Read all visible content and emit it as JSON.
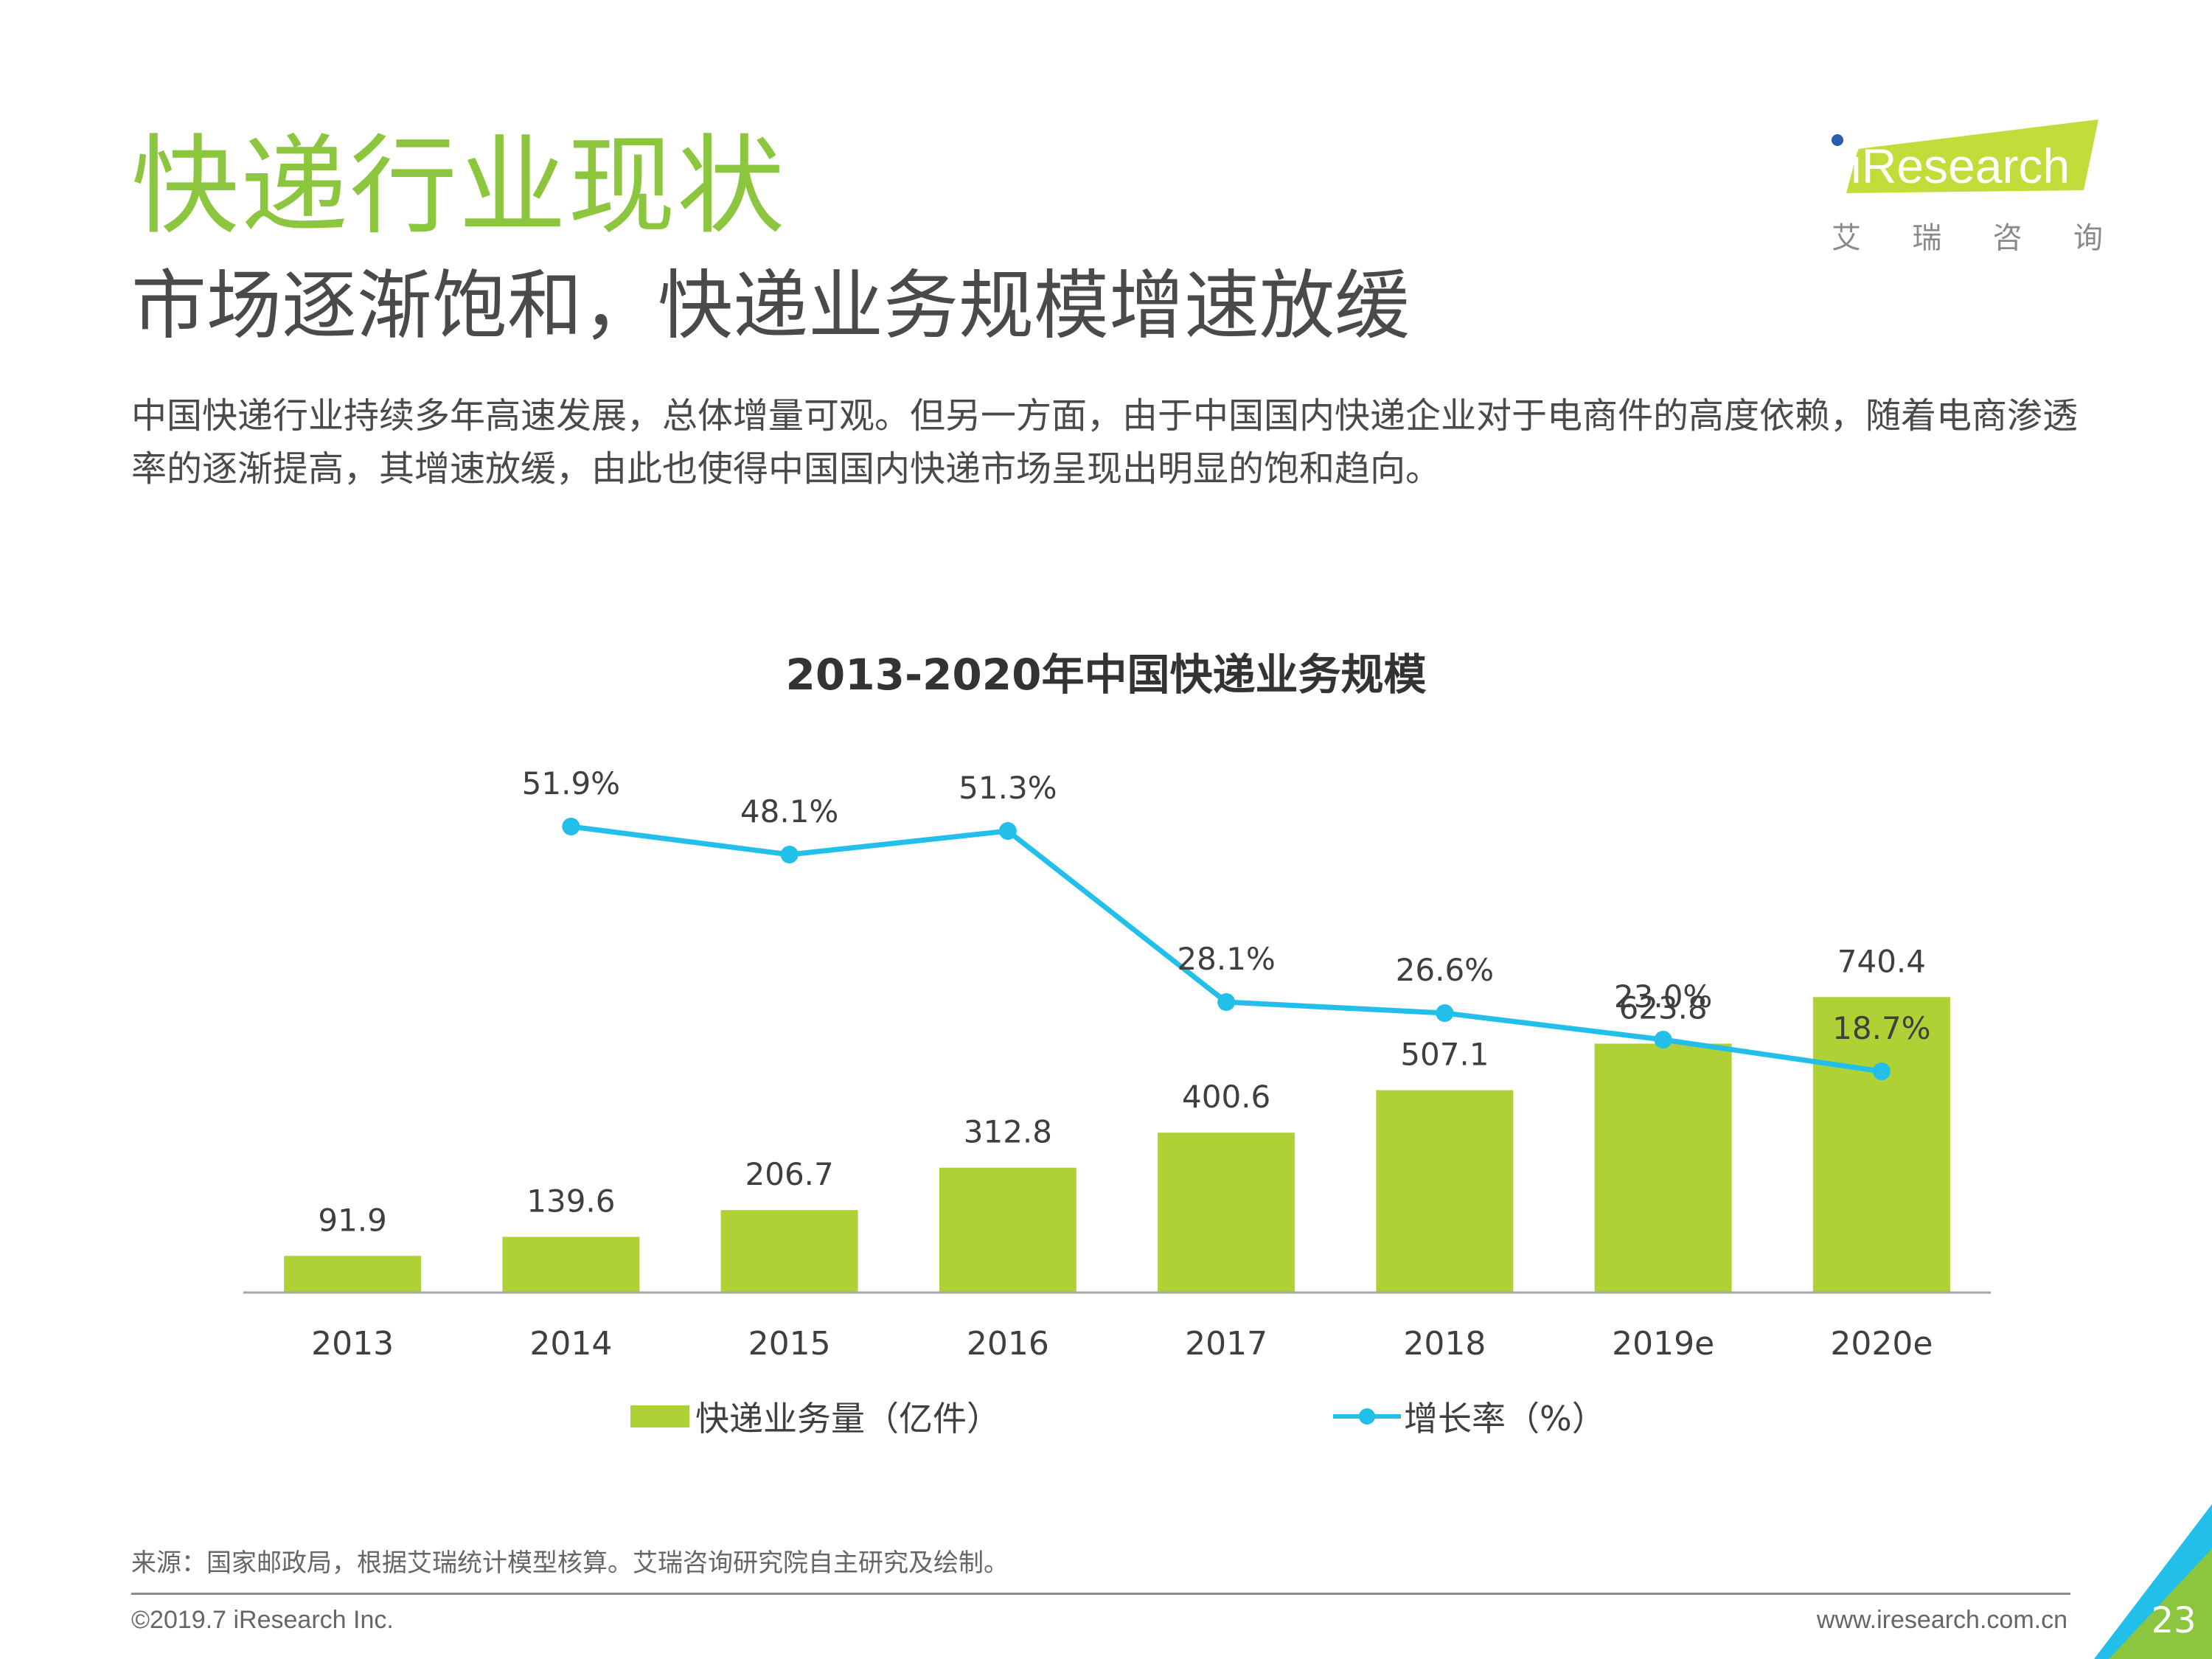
{
  "header": {
    "section_title": "快递行业现状",
    "subtitle": "市场逐渐饱和，快递业务规模增速放缓",
    "intro": "中国快递行业持续多年高速发展，总体增量可观。但另一方面，由于中国国内快递企业对于电商件的高度依赖，随着电商渗透率的逐渐提高，其增速放缓，由此也使得中国国内快递市场呈现出明显的饱和趋向。"
  },
  "logo": {
    "brand": "iResearch",
    "brand_cn": [
      "艾",
      "瑞",
      "咨",
      "询"
    ]
  },
  "chart_data": {
    "type": "bar",
    "title": "2013-2020年中国快递业务规模",
    "categories": [
      "2013",
      "2014",
      "2015",
      "2016",
      "2017",
      "2018",
      "2019e",
      "2020e"
    ],
    "series": [
      {
        "name": "快递业务量（亿件）",
        "type": "bar",
        "color": "#b0d136",
        "values": [
          91.9,
          139.6,
          206.7,
          312.8,
          400.6,
          507.1,
          623.8,
          740.4
        ],
        "labels": [
          "91.9",
          "139.6",
          "206.7",
          "312.8",
          "400.6",
          "507.1",
          "623.8",
          "740.4"
        ]
      },
      {
        "name": "增长率（%）",
        "type": "line",
        "color": "#21bfe9",
        "values": [
          null,
          51.9,
          48.1,
          51.3,
          28.1,
          26.6,
          23.0,
          18.7
        ],
        "labels": [
          "",
          "51.9%",
          "48.1%",
          "51.3%",
          "28.1%",
          "26.6%",
          "23.0%",
          "18.7%"
        ]
      }
    ],
    "bar_axis_range": [
      0,
      800
    ],
    "line_axis_range": [
      0,
      60
    ],
    "grid": false,
    "legend_position": "bottom"
  },
  "footer": {
    "source": "来源：国家邮政局，根据艾瑞统计模型核算。艾瑞咨询研究院自主研究及绘制。",
    "copyright": "©2019.7 iResearch Inc.",
    "website": "www.iresearch.com.cn",
    "page_number": "23"
  }
}
